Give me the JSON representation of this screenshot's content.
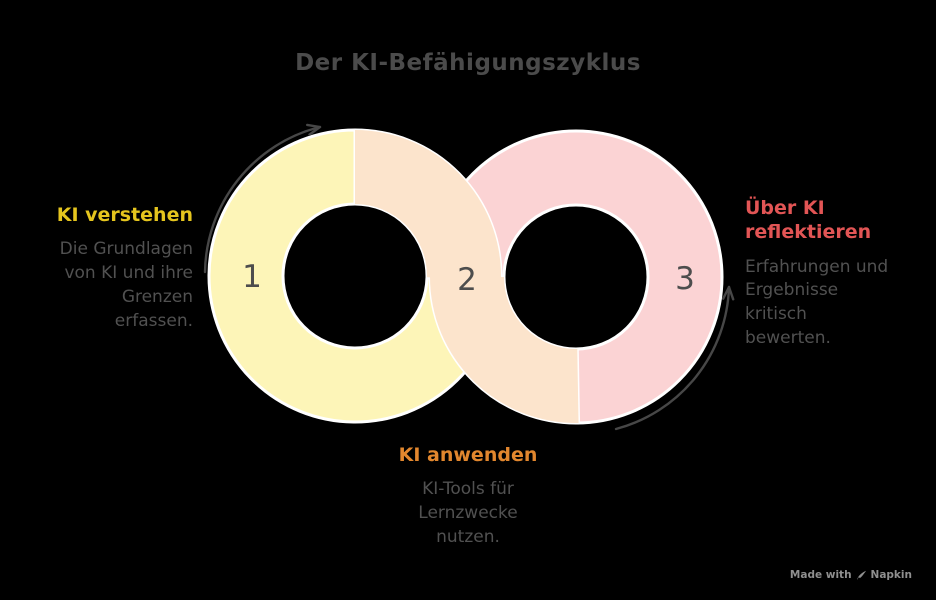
{
  "title": "Der KI-Befähigungszyklus",
  "segments": [
    {
      "number": "1",
      "heading": "KI verstehen",
      "heading_color": "#e5c51e",
      "body": "Die Grundlagen\nvon KI und ihre\nGrenzen\nerfassen.",
      "ring_color": "#fdf5b8"
    },
    {
      "number": "2",
      "heading": "KI anwenden",
      "heading_color": "#e2872e",
      "body": "KI-Tools für\nLernzwecke\nnutzen.",
      "ring_color": "#fce4cc"
    },
    {
      "number": "3",
      "heading": "Über KI\nreflektieren",
      "heading_color": "#e25555",
      "body": "Erfahrungen und\nErgebnisse\nkritisch\nbewerten.",
      "ring_color": "#fbd3d4"
    }
  ],
  "diagram": {
    "number_color": "#4d4d4d",
    "arrow_color": "#474747",
    "segment_border_color": "#ffffff",
    "background_color": "#000000"
  },
  "watermark": {
    "prefix": "Made with",
    "brand": "Napkin"
  }
}
